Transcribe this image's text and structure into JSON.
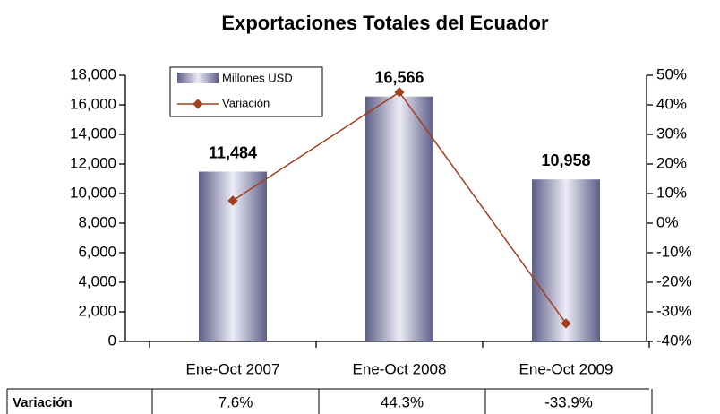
{
  "chart_data": {
    "type": "bar",
    "title": "Exportaciones Totales del Ecuador",
    "categories": [
      "Ene-Oct 2007",
      "Ene-Oct 2008",
      "Ene-Oct 2009"
    ],
    "series": [
      {
        "name": "Millones USD",
        "type": "bar",
        "color": "#8a8ab0",
        "values": [
          11484,
          16566,
          10958
        ],
        "value_labels": [
          "11,484",
          "16,566",
          "10,958"
        ]
      },
      {
        "name": "Variación",
        "type": "line",
        "axis": "y2",
        "color": "#a0401e",
        "values": [
          7.6,
          44.3,
          -33.9
        ],
        "value_labels": [
          "7.6%",
          "44.3%",
          "-33.9%"
        ]
      }
    ],
    "ylim": [
      0,
      18000
    ],
    "yticks": [
      0,
      {
        "value": 2000,
        "label": "2,000"
      },
      {
        "value": 4000,
        "label": "4,000"
      },
      {
        "value": 6000,
        "label": "6,000"
      },
      {
        "value": 8000,
        "label": "8,000"
      },
      {
        "value": 10000,
        "label": "10,000"
      },
      {
        "value": 12000,
        "label": "12,000"
      },
      {
        "value": 14000,
        "label": "14,000"
      },
      {
        "value": 16000,
        "label": "16,000"
      },
      {
        "value": 18000,
        "label": "18,000"
      }
    ],
    "y2lim": [
      -40,
      50
    ],
    "y2ticks": [
      {
        "value": -40,
        "label": "-40%"
      },
      {
        "value": -30,
        "label": "-30%"
      },
      {
        "value": -20,
        "label": "-20%"
      },
      {
        "value": -10,
        "label": "-10%"
      },
      {
        "value": 0,
        "label": "0%"
      },
      {
        "value": 10,
        "label": "10%"
      },
      {
        "value": 20,
        "label": "20%"
      },
      {
        "value": 30,
        "label": "30%"
      },
      {
        "value": 40,
        "label": "40%"
      },
      {
        "value": 50,
        "label": "50%"
      }
    ],
    "legend": "upper left"
  }
}
